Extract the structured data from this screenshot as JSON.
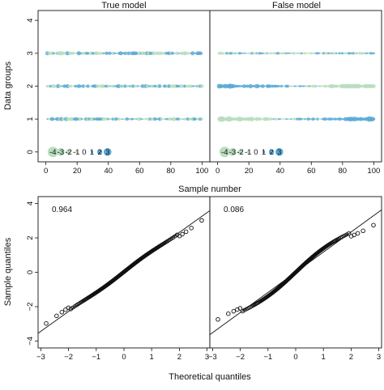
{
  "chart_data": [
    {
      "type": "scatter",
      "variant": "bubble-strip",
      "titles": [
        "True model",
        "False model"
      ],
      "xlabel": "Sample number",
      "ylabel": "Data groups",
      "xlim": [
        -5,
        105
      ],
      "ylim": [
        -0.3,
        4.3
      ],
      "x_ticks": [
        0,
        20,
        40,
        60,
        80,
        100
      ],
      "y_ticks": [
        0,
        1,
        2,
        3,
        4
      ],
      "colors": {
        "positive": "#5aaad6",
        "negative": "#b9ddbe"
      },
      "legend": {
        "position": "bottom-left",
        "values": [
          "-4",
          "-3",
          "-2",
          "-1",
          "0",
          "1",
          "2",
          "3"
        ]
      },
      "panels": [
        {
          "title": "True model",
          "series": [
            {
              "group": 1,
              "intensity": "mixed"
            },
            {
              "group": 2,
              "intensity": "mixed"
            },
            {
              "group": 3,
              "intensity": "mixed"
            }
          ]
        },
        {
          "title": "False model",
          "series": [
            {
              "group": 1,
              "intensity": "trend"
            },
            {
              "group": 2,
              "intensity": "trend"
            },
            {
              "group": 3,
              "intensity": "small"
            }
          ]
        }
      ]
    },
    {
      "type": "scatter",
      "variant": "qq-plot",
      "xlabel": "Theoretical quantiles",
      "ylabel": "Sample quantiles",
      "xlim": [
        -3.1,
        3.1
      ],
      "ylim": [
        -4.4,
        4.4
      ],
      "x_ticks": [
        -3,
        -2,
        -1,
        0,
        1,
        2,
        3
      ],
      "y_ticks": [
        -4,
        -2,
        0,
        2,
        4
      ],
      "panels": [
        {
          "stat_label": "0.964",
          "reference_line": {
            "intercept": 0.02,
            "slope": 1.15
          },
          "points_n": 200
        },
        {
          "stat_label": "0.086",
          "reference_line": {
            "intercept": 0.0,
            "slope": 1.17
          },
          "points_n": 200
        }
      ]
    }
  ]
}
